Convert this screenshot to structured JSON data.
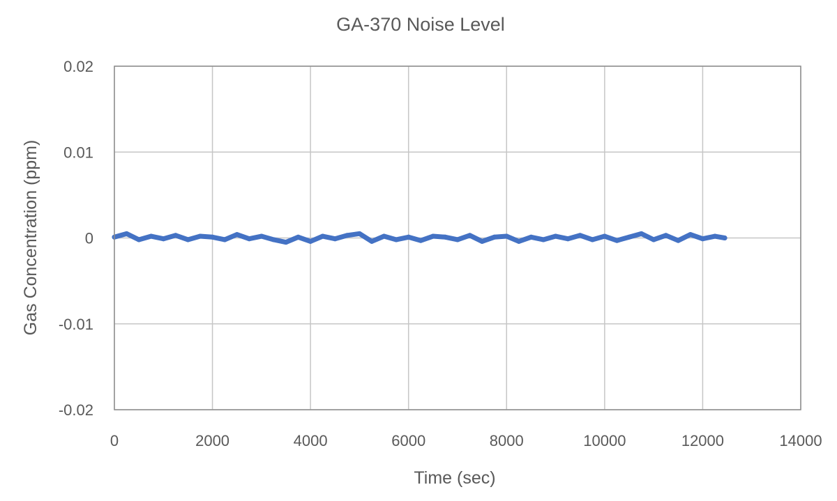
{
  "chart_data": {
    "type": "line",
    "title": "GA-370 Noise Level",
    "xlabel": "Time (sec)",
    "ylabel": "Gas Concentration (ppm)",
    "xlim": [
      0,
      14000
    ],
    "ylim": [
      -0.02,
      0.02
    ],
    "xticks": [
      "0",
      "2000",
      "4000",
      "6000",
      "8000",
      "10000",
      "12000",
      "14000"
    ],
    "yticks": [
      "0.02",
      "0.01",
      "0",
      "-0.01",
      "-0.02"
    ],
    "grid": true,
    "legend": "none",
    "line_color": "#4472C4",
    "series": [
      {
        "x": [
          0,
          250,
          500,
          750,
          1000,
          1250,
          1500,
          1750,
          2000,
          2250,
          2500,
          2750,
          3000,
          3250,
          3500,
          3750,
          4000,
          4250,
          4500,
          4750,
          5000,
          5250,
          5500,
          5750,
          6000,
          6250,
          6500,
          6750,
          7000,
          7250,
          7500,
          7750,
          8000,
          8250,
          8500,
          8750,
          9000,
          9250,
          9500,
          9750,
          10000,
          10250,
          10500,
          10750,
          11000,
          11250,
          11500,
          11750,
          12000,
          12250,
          12450
        ],
        "y": [
          0.0001,
          0.0005,
          -0.0002,
          0.0002,
          -0.0001,
          0.0003,
          -0.0002,
          0.0002,
          0.0001,
          -0.0002,
          0.0004,
          -0.0001,
          0.0002,
          -0.0002,
          -0.0005,
          0.0001,
          -0.0004,
          0.0002,
          -0.0001,
          0.0003,
          0.0005,
          -0.0004,
          0.0002,
          -0.0002,
          0.0001,
          -0.0003,
          0.0002,
          0.0001,
          -0.0002,
          0.0003,
          -0.0004,
          0.0001,
          0.0002,
          -0.0004,
          0.0001,
          -0.0002,
          0.0002,
          -0.0001,
          0.0003,
          -0.0002,
          0.0002,
          -0.0003,
          0.0001,
          0.0005,
          -0.0002,
          0.0003,
          -0.0003,
          0.0004,
          -0.0001,
          0.0002,
          0.0
        ]
      }
    ]
  }
}
